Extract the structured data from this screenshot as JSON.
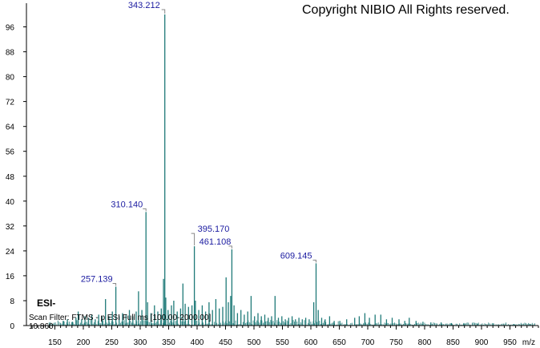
{
  "copyright": "Copyright NIBIO All Rights reserved.",
  "ion_mode": "ESI-",
  "scan_filter": "Scan Filter: FTMS - p ESI Full ms [100.00-2000.00]",
  "retention_time": "10.860",
  "colors": {
    "peak": "#1f7a78",
    "label": "#1a1aa0",
    "axis": "#000000",
    "bracket": "#888888"
  },
  "chart_data": {
    "type": "bar",
    "title": "",
    "xlabel": "m/z",
    "ylabel": "",
    "xlim": [
      100,
      1000
    ],
    "ylim": [
      0,
      100
    ],
    "x_ticks": [
      150,
      200,
      250,
      300,
      350,
      400,
      450,
      500,
      550,
      600,
      650,
      700,
      750,
      800,
      850,
      900,
      950
    ],
    "y_ticks": [
      0,
      8,
      16,
      24,
      32,
      40,
      48,
      56,
      64,
      72,
      80,
      88,
      96
    ],
    "grid": false,
    "peaks": [
      {
        "mz": 165.0,
        "intensity": 1.5
      },
      {
        "mz": 172.0,
        "intensity": 2.0
      },
      {
        "mz": 181.0,
        "intensity": 1.2
      },
      {
        "mz": 187.0,
        "intensity": 2.5
      },
      {
        "mz": 191.0,
        "intensity": 4.5
      },
      {
        "mz": 197.0,
        "intensity": 2.0
      },
      {
        "mz": 203.0,
        "intensity": 3.0
      },
      {
        "mz": 209.0,
        "intensity": 2.5
      },
      {
        "mz": 215.0,
        "intensity": 3.5
      },
      {
        "mz": 221.0,
        "intensity": 2.0
      },
      {
        "mz": 227.0,
        "intensity": 3.5
      },
      {
        "mz": 233.0,
        "intensity": 3.0
      },
      {
        "mz": 239.0,
        "intensity": 8.5
      },
      {
        "mz": 245.0,
        "intensity": 3.0
      },
      {
        "mz": 251.0,
        "intensity": 4.5
      },
      {
        "mz": 257.139,
        "intensity": 12.5
      },
      {
        "mz": 263.0,
        "intensity": 3.0
      },
      {
        "mz": 269.0,
        "intensity": 4.0
      },
      {
        "mz": 275.0,
        "intensity": 3.5
      },
      {
        "mz": 281.0,
        "intensity": 5.0
      },
      {
        "mz": 287.0,
        "intensity": 3.0
      },
      {
        "mz": 293.0,
        "intensity": 4.5
      },
      {
        "mz": 297.0,
        "intensity": 11.0
      },
      {
        "mz": 303.0,
        "intensity": 5.0
      },
      {
        "mz": 310.14,
        "intensity": 36.5
      },
      {
        "mz": 313.0,
        "intensity": 7.5
      },
      {
        "mz": 319.0,
        "intensity": 4.0
      },
      {
        "mz": 325.0,
        "intensity": 6.5
      },
      {
        "mz": 331.0,
        "intensity": 4.5
      },
      {
        "mz": 337.0,
        "intensity": 5.5
      },
      {
        "mz": 341.0,
        "intensity": 15.0
      },
      {
        "mz": 343.212,
        "intensity": 100.0
      },
      {
        "mz": 345.0,
        "intensity": 9.0
      },
      {
        "mz": 349.0,
        "intensity": 5.0
      },
      {
        "mz": 355.0,
        "intensity": 6.5
      },
      {
        "mz": 359.0,
        "intensity": 8.0
      },
      {
        "mz": 365.0,
        "intensity": 4.5
      },
      {
        "mz": 371.0,
        "intensity": 5.5
      },
      {
        "mz": 375.0,
        "intensity": 13.5
      },
      {
        "mz": 379.0,
        "intensity": 7.0
      },
      {
        "mz": 385.0,
        "intensity": 6.0
      },
      {
        "mz": 391.0,
        "intensity": 6.5
      },
      {
        "mz": 395.17,
        "intensity": 25.5
      },
      {
        "mz": 397.0,
        "intensity": 8.0
      },
      {
        "mz": 403.0,
        "intensity": 5.0
      },
      {
        "mz": 409.0,
        "intensity": 6.5
      },
      {
        "mz": 415.0,
        "intensity": 4.5
      },
      {
        "mz": 421.0,
        "intensity": 7.5
      },
      {
        "mz": 427.0,
        "intensity": 5.0
      },
      {
        "mz": 433.0,
        "intensity": 8.5
      },
      {
        "mz": 439.0,
        "intensity": 5.5
      },
      {
        "mz": 445.0,
        "intensity": 6.0
      },
      {
        "mz": 451.0,
        "intensity": 15.5
      },
      {
        "mz": 455.0,
        "intensity": 7.5
      },
      {
        "mz": 459.0,
        "intensity": 9.5
      },
      {
        "mz": 461.108,
        "intensity": 24.5
      },
      {
        "mz": 465.0,
        "intensity": 6.5
      },
      {
        "mz": 471.0,
        "intensity": 4.0
      },
      {
        "mz": 477.0,
        "intensity": 5.0
      },
      {
        "mz": 483.0,
        "intensity": 3.5
      },
      {
        "mz": 489.0,
        "intensity": 4.5
      },
      {
        "mz": 495.0,
        "intensity": 9.5
      },
      {
        "mz": 501.0,
        "intensity": 3.0
      },
      {
        "mz": 507.0,
        "intensity": 4.0
      },
      {
        "mz": 513.0,
        "intensity": 3.0
      },
      {
        "mz": 519.0,
        "intensity": 3.5
      },
      {
        "mz": 525.0,
        "intensity": 2.5
      },
      {
        "mz": 531.0,
        "intensity": 3.0
      },
      {
        "mz": 537.0,
        "intensity": 9.5
      },
      {
        "mz": 543.0,
        "intensity": 2.5
      },
      {
        "mz": 549.0,
        "intensity": 3.0
      },
      {
        "mz": 555.0,
        "intensity": 2.0
      },
      {
        "mz": 561.0,
        "intensity": 2.5
      },
      {
        "mz": 567.0,
        "intensity": 3.0
      },
      {
        "mz": 573.0,
        "intensity": 2.0
      },
      {
        "mz": 579.0,
        "intensity": 2.5
      },
      {
        "mz": 585.0,
        "intensity": 2.0
      },
      {
        "mz": 591.0,
        "intensity": 2.5
      },
      {
        "mz": 597.0,
        "intensity": 2.0
      },
      {
        "mz": 605.0,
        "intensity": 7.5
      },
      {
        "mz": 609.145,
        "intensity": 20.0
      },
      {
        "mz": 613.0,
        "intensity": 5.0
      },
      {
        "mz": 619.0,
        "intensity": 2.5
      },
      {
        "mz": 625.0,
        "intensity": 2.0
      },
      {
        "mz": 633.0,
        "intensity": 3.0
      },
      {
        "mz": 641.0,
        "intensity": 1.5
      },
      {
        "mz": 651.0,
        "intensity": 1.5
      },
      {
        "mz": 663.0,
        "intensity": 2.0
      },
      {
        "mz": 677.0,
        "intensity": 2.5
      },
      {
        "mz": 685.0,
        "intensity": 3.0
      },
      {
        "mz": 695.0,
        "intensity": 4.0
      },
      {
        "mz": 703.0,
        "intensity": 2.5
      },
      {
        "mz": 713.0,
        "intensity": 3.5
      },
      {
        "mz": 723.0,
        "intensity": 3.5
      },
      {
        "mz": 733.0,
        "intensity": 2.0
      },
      {
        "mz": 743.0,
        "intensity": 2.5
      },
      {
        "mz": 755.0,
        "intensity": 2.0
      },
      {
        "mz": 765.0,
        "intensity": 1.5
      },
      {
        "mz": 773.0,
        "intensity": 2.5
      },
      {
        "mz": 785.0,
        "intensity": 1.5
      },
      {
        "mz": 797.0,
        "intensity": 1.2
      },
      {
        "mz": 811.0,
        "intensity": 1.0
      },
      {
        "mz": 829.0,
        "intensity": 1.0
      },
      {
        "mz": 847.0,
        "intensity": 0.8
      },
      {
        "mz": 869.0,
        "intensity": 0.8
      },
      {
        "mz": 893.0,
        "intensity": 0.6
      },
      {
        "mz": 921.0,
        "intensity": 0.6
      },
      {
        "mz": 957.0,
        "intensity": 0.5
      },
      {
        "mz": 985.0,
        "intensity": 0.5
      }
    ],
    "annotations": [
      {
        "label": "343.212",
        "mz": 343.212,
        "intensity": 100.0
      },
      {
        "label": "310.140",
        "mz": 310.14,
        "intensity": 36.5
      },
      {
        "label": "257.139",
        "mz": 257.139,
        "intensity": 12.5
      },
      {
        "label": "395.170",
        "mz": 395.17,
        "intensity": 25.5
      },
      {
        "label": "461.108",
        "mz": 461.108,
        "intensity": 24.5
      },
      {
        "label": "609.145",
        "mz": 609.145,
        "intensity": 20.0
      }
    ]
  }
}
